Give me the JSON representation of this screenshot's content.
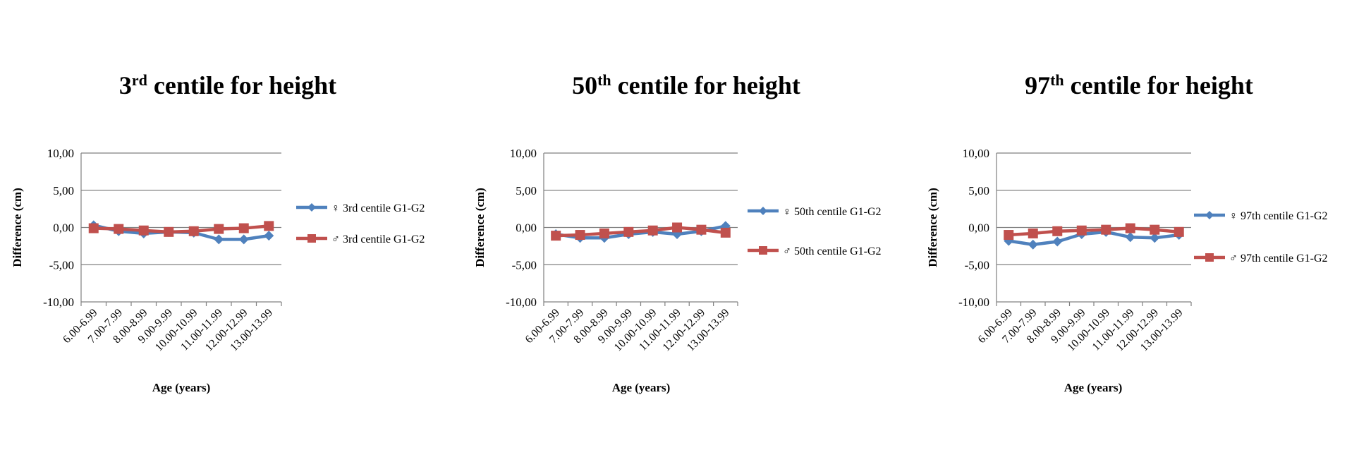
{
  "colors": {
    "female": "#4F81BD",
    "male": "#C0504D",
    "grid": "#808080"
  },
  "chart_data": [
    {
      "type": "line",
      "title_main": "3",
      "title_sup": "rd",
      "title_rest": " centile for height",
      "xlabel": "Age (years)",
      "ylabel": "Difference (cm)",
      "ylim": [
        -10,
        10
      ],
      "yticks": [
        10,
        5,
        0,
        -5,
        -10
      ],
      "ytick_labels": [
        "10,00",
        "5,00",
        "0,00",
        "-5,00",
        "-10,00"
      ],
      "categories": [
        "6.00-6.99",
        "7.00-7.99",
        "8.00-8.99",
        "9.00-9.99",
        "10.00-10.99",
        "11.00-11.99",
        "12.00-12.99",
        "13.00-13.99"
      ],
      "grid": true,
      "legend_position": "right",
      "series": [
        {
          "name": "♀ 3rd centile  G1-G2",
          "marker": "diamond",
          "values": [
            0.3,
            -0.5,
            -0.8,
            -0.6,
            -0.7,
            -1.6,
            -1.6,
            -1.1
          ]
        },
        {
          "name": "♂ 3rd centile  G1-G2",
          "marker": "square",
          "values": [
            -0.1,
            -0.2,
            -0.4,
            -0.6,
            -0.5,
            -0.2,
            -0.1,
            0.2
          ]
        }
      ]
    },
    {
      "type": "line",
      "title_main": "50",
      "title_sup": "th",
      "title_rest": " centile for height",
      "xlabel": "Age (years)",
      "ylabel": "Difference (cm)",
      "ylim": [
        -10,
        10
      ],
      "yticks": [
        10,
        5,
        0,
        -5,
        -10
      ],
      "ytick_labels": [
        "10,00",
        "5,00",
        "0,00",
        "-5,00",
        "-10,00"
      ],
      "categories": [
        "6.00-6.99",
        "7.00-7.99",
        "8.00-8.99",
        "9.00-9.99",
        "10.00-10.99",
        "11.00-11.99",
        "12.00-12.99",
        "13.00-13.99"
      ],
      "grid": true,
      "legend_position": "right",
      "series": [
        {
          "name": "♀ 50th  centile  G1-G2",
          "marker": "diamond",
          "values": [
            -0.9,
            -1.4,
            -1.4,
            -0.9,
            -0.6,
            -0.9,
            -0.5,
            0.2
          ]
        },
        {
          "name": "♂  50th  centile  G1-G2",
          "marker": "square",
          "values": [
            -1.1,
            -1.0,
            -0.8,
            -0.6,
            -0.4,
            0.0,
            -0.3,
            -0.7
          ]
        }
      ]
    },
    {
      "type": "line",
      "title_main": "97",
      "title_sup": "th",
      "title_rest": " centile for height",
      "xlabel": "Age (years)",
      "ylabel": "Difference (cm)",
      "ylim": [
        -10,
        10
      ],
      "yticks": [
        10,
        5,
        0,
        -5,
        -10
      ],
      "ytick_labels": [
        "10,00",
        "5,00",
        "0,00",
        "-5,00",
        "-10,00"
      ],
      "categories": [
        "6.00-6.99",
        "7.00-7.99",
        "8.00-8.99",
        "9.00-9.99",
        "10.00-10.99",
        "11.00-11.99",
        "12.00-12.99",
        "13.00-13.99"
      ],
      "grid": true,
      "legend_position": "right",
      "series": [
        {
          "name": "♀  97th  centile  G1-G2",
          "marker": "diamond",
          "values": [
            -1.8,
            -2.3,
            -1.9,
            -0.9,
            -0.6,
            -1.3,
            -1.4,
            -1.0
          ]
        },
        {
          "name": "♂  97th  centile   G1-G2",
          "marker": "square",
          "values": [
            -1.0,
            -0.8,
            -0.5,
            -0.4,
            -0.3,
            -0.1,
            -0.3,
            -0.6
          ]
        }
      ]
    }
  ]
}
